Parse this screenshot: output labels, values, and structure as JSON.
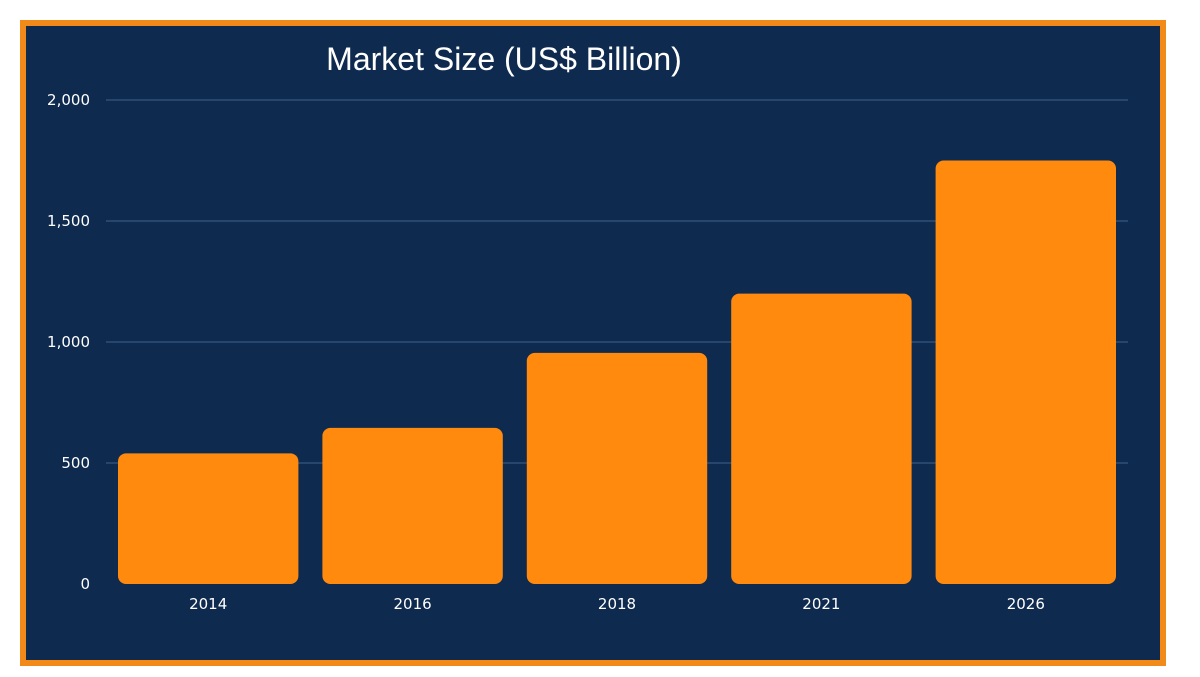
{
  "chart_data": {
    "type": "bar",
    "title": "Market Size (US$ Billion)",
    "xlabel": "",
    "ylabel": "",
    "categories": [
      "2014",
      "2016",
      "2018",
      "2021",
      "2026"
    ],
    "values": [
      540,
      645,
      955,
      1200,
      1750
    ],
    "ylim": [
      0,
      2000
    ],
    "yticks": [
      "0",
      "500",
      "1,000",
      "1,500",
      "2,000"
    ],
    "ytick_values": [
      0,
      500,
      1000,
      1500,
      2000
    ],
    "grid": true,
    "bar_color": "#ff8a0d",
    "background_color": "#0e2a4f",
    "border_color": "#f28a1a",
    "gridline_color": "#2f4f78"
  }
}
